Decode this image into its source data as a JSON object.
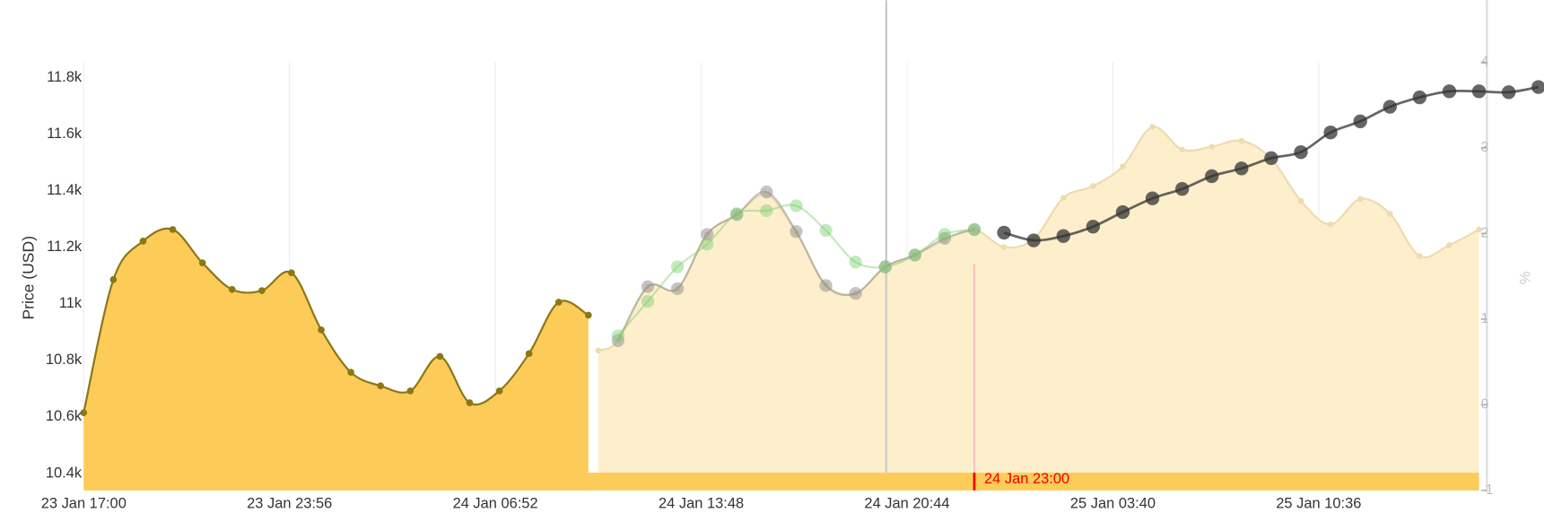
{
  "chart_data": {
    "type": "area",
    "y_title": "Price (USD)",
    "y2_title": "%",
    "xlim": [
      "23 Jan 17:00",
      "25 Jan 16:00"
    ],
    "xticks": [
      "23 Jan 17:00",
      "23 Jan 23:56",
      "24 Jan 06:52",
      "24 Jan 13:48",
      "24 Jan 20:44",
      "25 Jan 03:40",
      "25 Jan 10:36"
    ],
    "ylim": [
      10340,
      11855
    ],
    "yticks": [
      {
        "value": 10400,
        "label": "10.4k"
      },
      {
        "value": 10600,
        "label": "10.6k"
      },
      {
        "value": 10800,
        "label": "10.8k"
      },
      {
        "value": 11000,
        "label": "11k"
      },
      {
        "value": 11200,
        "label": "11.2k"
      },
      {
        "value": 11400,
        "label": "11.4k"
      },
      {
        "value": 11600,
        "label": "11.6k"
      },
      {
        "value": 11800,
        "label": "11.8k"
      }
    ],
    "y2lim": [
      -1,
      4
    ],
    "y2ticks": [
      -1,
      0,
      1,
      2,
      3,
      4
    ],
    "grid": true,
    "marker": "24 Jan 23:00",
    "series": [
      {
        "color": "#8a7816",
        "fill": "#fdcb58",
        "marker_size": 3.5,
        "opacity": 1,
        "x": [
          "23 Jan 17:00",
          "23 Jan 18:00",
          "23 Jan 19:00",
          "23 Jan 20:00",
          "23 Jan 21:00",
          "23 Jan 22:00",
          "23 Jan 23:00",
          "24 Jan 00:00",
          "24 Jan 01:00",
          "24 Jan 02:00",
          "24 Jan 03:00",
          "24 Jan 04:00",
          "24 Jan 05:00",
          "24 Jan 06:00",
          "24 Jan 07:00",
          "24 Jan 08:00",
          "24 Jan 09:00",
          "24 Jan 10:00"
        ],
        "values": [
          10615,
          11086,
          11222,
          11263,
          11145,
          11051,
          11047,
          11110,
          10908,
          10758,
          10710,
          10692,
          10814,
          10650,
          10692,
          10824,
          11006,
          10960
        ]
      },
      {
        "color": "#ecdcae",
        "fill": "#fdefcc",
        "marker_size": 3,
        "opacity": 1,
        "x": [
          "24 Jan 10:20",
          "24 Jan 11:00",
          "24 Jan 12:00",
          "24 Jan 13:00",
          "24 Jan 14:00",
          "24 Jan 15:00",
          "24 Jan 16:00",
          "24 Jan 17:00",
          "24 Jan 18:00",
          "24 Jan 19:00",
          "24 Jan 20:00",
          "24 Jan 21:00",
          "24 Jan 22:00",
          "24 Jan 23:00",
          "25 Jan 00:00",
          "25 Jan 01:00",
          "25 Jan 02:00",
          "25 Jan 03:00",
          "25 Jan 04:00",
          "25 Jan 05:00",
          "25 Jan 06:00",
          "25 Jan 07:00",
          "25 Jan 08:00",
          "25 Jan 09:00",
          "25 Jan 10:00",
          "25 Jan 11:00",
          "25 Jan 12:00",
          "25 Jan 13:00",
          "25 Jan 14:00",
          "25 Jan 15:00",
          "25 Jan 16:00"
        ],
        "values": [
          10835,
          10870,
          11061,
          11054,
          11246,
          11316,
          11386,
          11253,
          11068,
          11037,
          11131,
          11173,
          11225,
          11263,
          11201,
          11229,
          11375,
          11417,
          11486,
          11626,
          11546,
          11556,
          11577,
          11514,
          11364,
          11281,
          11371,
          11319,
          11169,
          11208,
          11263
        ]
      },
      {
        "color": "#8c8c8c",
        "marker_size": 6.5,
        "opacity": 0.5,
        "x": [
          "24 Jan 11:00",
          "24 Jan 12:00",
          "24 Jan 13:00",
          "24 Jan 14:00",
          "24 Jan 15:00",
          "24 Jan 16:00",
          "24 Jan 17:00",
          "24 Jan 18:00",
          "24 Jan 19:00",
          "24 Jan 20:00",
          "24 Jan 21:00",
          "24 Jan 22:00",
          "24 Jan 23:00"
        ],
        "values": [
          10870,
          11061,
          11054,
          11246,
          11316,
          11396,
          11256,
          11065,
          11037,
          11131,
          11173,
          11232,
          11263
        ]
      },
      {
        "color": "#7ccf6e",
        "marker_size": 6.5,
        "opacity": 0.45,
        "x": [
          "24 Jan 11:00",
          "24 Jan 12:00",
          "24 Jan 13:00",
          "24 Jan 14:00",
          "24 Jan 15:00",
          "24 Jan 16:00",
          "24 Jan 17:00",
          "24 Jan 18:00",
          "24 Jan 19:00",
          "24 Jan 20:00",
          "24 Jan 21:00",
          "24 Jan 22:00",
          "24 Jan 23:00"
        ],
        "values": [
          10887,
          11009,
          11131,
          11211,
          11319,
          11330,
          11347,
          11260,
          11148,
          11131,
          11173,
          11246,
          11263
        ]
      },
      {
        "color": "#333333",
        "marker_size": 7,
        "opacity": 0.75,
        "axis": "y2",
        "x": [
          "25 Jan 00:00",
          "25 Jan 01:00",
          "25 Jan 02:00",
          "25 Jan 03:00",
          "25 Jan 04:00",
          "25 Jan 05:00",
          "25 Jan 06:00",
          "25 Jan 07:00",
          "25 Jan 08:00",
          "25 Jan 09:00",
          "25 Jan 10:00",
          "25 Jan 11:00",
          "25 Jan 12:00",
          "25 Jan 13:00",
          "25 Jan 14:00",
          "25 Jan 15:00",
          "25 Jan 16:00",
          "25 Jan 17:00",
          "25 Jan 18:00"
        ],
        "values": [
          2.01,
          1.92,
          1.97,
          2.08,
          2.25,
          2.41,
          2.52,
          2.67,
          2.76,
          2.88,
          2.95,
          3.18,
          3.31,
          3.48,
          3.59,
          3.66,
          3.66,
          3.65,
          3.71
        ]
      }
    ]
  }
}
